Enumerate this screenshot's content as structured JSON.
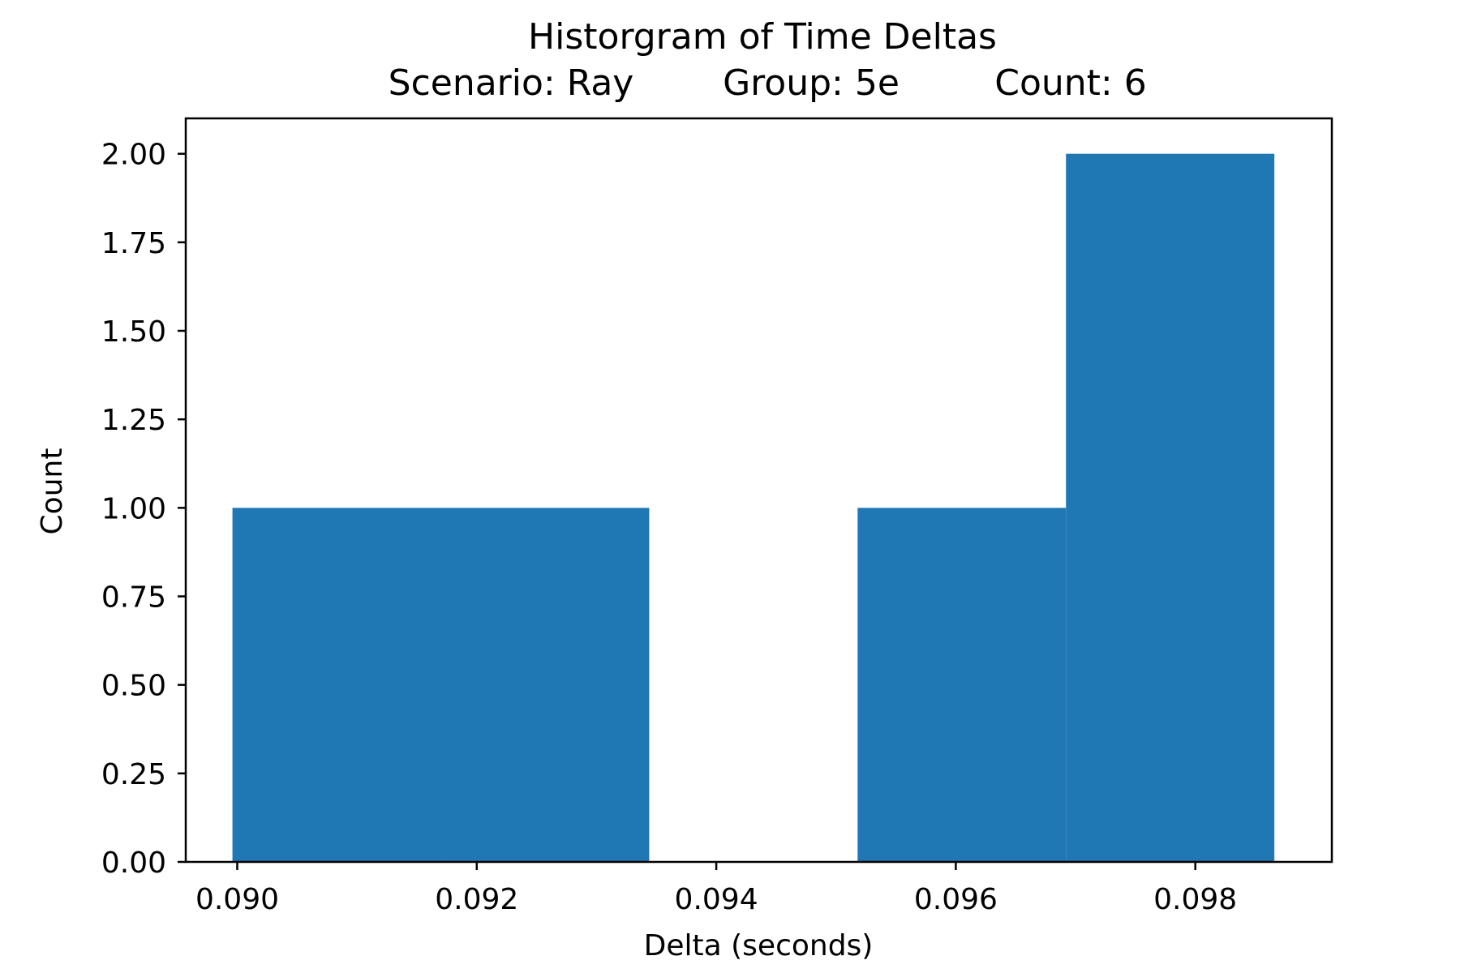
{
  "chart_data": {
    "type": "bar",
    "title": "Historgram of Time Deltas",
    "subtitle": {
      "scenario": "Scenario: Ray",
      "group": "Group: 5e",
      "count": "Count: 6"
    },
    "xlabel": "Delta (seconds)",
    "ylabel": "Count",
    "xlim": [
      0.08957,
      0.09914
    ],
    "ylim": [
      0,
      2.1
    ],
    "x_ticks": [
      0.09,
      0.092,
      0.094,
      0.096,
      0.098
    ],
    "x_tick_labels": [
      "0.090",
      "0.092",
      "0.094",
      "0.096",
      "0.098"
    ],
    "y_ticks": [
      0,
      0.25,
      0.5,
      0.75,
      1.0,
      1.25,
      1.5,
      1.75,
      2.0
    ],
    "y_tick_labels": [
      "0.00",
      "0.25",
      "0.50",
      "0.75",
      "1.00",
      "1.25",
      "1.50",
      "1.75",
      "2.00"
    ],
    "bins": [
      {
        "x0": 0.08996,
        "x1": 0.0917,
        "count": 1
      },
      {
        "x0": 0.0917,
        "x1": 0.09344,
        "count": 1
      },
      {
        "x0": 0.09344,
        "x1": 0.09518,
        "count": 0
      },
      {
        "x0": 0.09518,
        "x1": 0.09692,
        "count": 1
      },
      {
        "x0": 0.09692,
        "x1": 0.09866,
        "count": 2
      }
    ],
    "bar_color": "#1f77b4",
    "grid": false,
    "legend": "none"
  }
}
